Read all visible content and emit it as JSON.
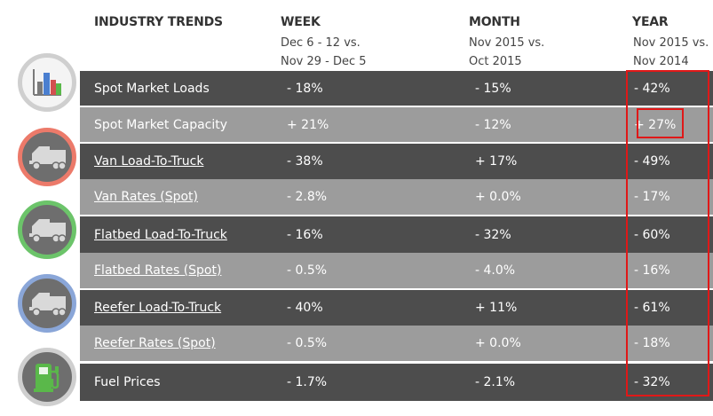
{
  "headers": {
    "title": "INDUSTRY TRENDS",
    "week": "WEEK",
    "month": "MONTH",
    "year": "YEAR"
  },
  "subheaders": {
    "week_line1": "Dec 6 - 12 vs.",
    "week_line2": "Nov 29 - Dec 5",
    "month_line1": "Nov 2015 vs.",
    "month_line2": "Oct 2015",
    "year_line1": "Nov 2015 vs.",
    "year_line2": "Nov 2014"
  },
  "rows": [
    {
      "label": "Spot Market Loads",
      "week": "- 18%",
      "month": "- 15%",
      "year": "- 42%"
    },
    {
      "label": "Spot Market Capacity",
      "week": "+ 21%",
      "month": "- 12%",
      "year": "+ 27%"
    },
    {
      "label": "Van Load-To-Truck",
      "week": "- 38%",
      "month": "+ 17%",
      "year": "- 49%"
    },
    {
      "label": "Van Rates (Spot)",
      "week": "- 2.8%",
      "month": "+ 0.0%",
      "year": "- 17%"
    },
    {
      "label": "Flatbed Load-To-Truck",
      "week": "- 16%",
      "month": "- 32%",
      "year": "- 60%"
    },
    {
      "label": "Flatbed Rates (Spot)",
      "week": "- 0.5%",
      "month": "- 4.0%",
      "year": "- 16%"
    },
    {
      "label": "Reefer Load-To-Truck",
      "week": "- 40%",
      "month": "+ 11%",
      "year": "- 61%"
    },
    {
      "label": "Reefer Rates (Spot)",
      "week": "- 0.5%",
      "month": "+ 0.0%",
      "year": "- 18%"
    },
    {
      "label": "Fuel Prices",
      "week": "- 1.7%",
      "month": "- 2.1%",
      "year": "- 32%"
    }
  ],
  "icons": [
    {
      "name": "bar-chart-icon",
      "ring_color": "#cfcfcf"
    },
    {
      "name": "truck-icon",
      "ring_color": "#ec7a6a"
    },
    {
      "name": "truck-icon",
      "ring_color": "#6cc46a"
    },
    {
      "name": "truck-icon",
      "ring_color": "#8aa6d8"
    },
    {
      "name": "fuel-pump-icon",
      "ring_color": "#cfcfcf"
    }
  ],
  "colors": {
    "dark_row": "#4d4d4d",
    "light_row": "#9c9c9c",
    "highlight": "#e01818",
    "bar_chart": [
      "#7a7a7a",
      "#4a7fd0",
      "#d25050",
      "#5ab84a"
    ],
    "fuel_pump": "#5ab84a"
  }
}
